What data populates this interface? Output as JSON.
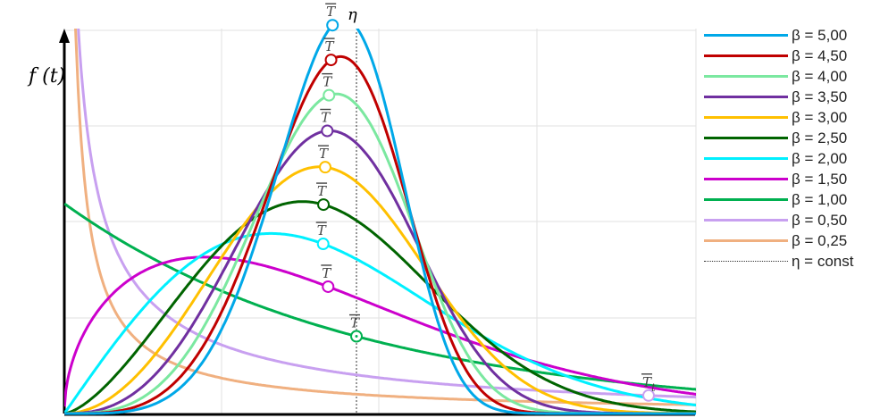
{
  "chart_data": {
    "type": "line",
    "title": "",
    "ylabel": "f (t)",
    "xlabel": "",
    "eta_label": "η",
    "eta": 1.0,
    "xlim": [
      0,
      2.2
    ],
    "grid": true,
    "legend_position": "right",
    "series": [
      {
        "name": "β = 5,00",
        "beta": 5.0,
        "color": "#00a8e8",
        "mean_label": "T",
        "mean_x": 0.918
      },
      {
        "name": "β = 4,50",
        "beta": 4.5,
        "color": "#c00000",
        "mean_label": "T",
        "mean_x": 0.913
      },
      {
        "name": "β = 4,00",
        "beta": 4.0,
        "color": "#7be8a0",
        "mean_label": "T",
        "mean_x": 0.906
      },
      {
        "name": "β = 3,50",
        "beta": 3.5,
        "color": "#7030a0",
        "mean_label": "T",
        "mean_x": 0.9
      },
      {
        "name": "β = 3,00",
        "beta": 3.0,
        "color": "#ffc000",
        "mean_label": "T",
        "mean_x": 0.893
      },
      {
        "name": "β = 2,50",
        "beta": 2.5,
        "color": "#006400",
        "mean_label": "T",
        "mean_x": 0.887
      },
      {
        "name": "β = 2,00",
        "beta": 2.0,
        "color": "#00f0ff",
        "mean_label": "T",
        "mean_x": 0.886
      },
      {
        "name": "β = 1,50",
        "beta": 1.5,
        "color": "#cc00cc",
        "mean_label": "T",
        "mean_x": 0.903
      },
      {
        "name": "β = 1,00",
        "beta": 1.0,
        "color": "#00b050",
        "mean_label": "T",
        "mean_x": 1.0
      },
      {
        "name": "β = 0,50",
        "beta": 0.5,
        "color": "#c8a0f0",
        "mean_label": "T",
        "mean_x": 2.0
      },
      {
        "name": "β = 0,25",
        "beta": 0.25,
        "color": "#f0b080",
        "mean_label": "",
        "mean_x": null
      }
    ],
    "eta_line_label": "η  = const",
    "extra_marker_label": "T",
    "extra_marker_subscript": "t"
  }
}
